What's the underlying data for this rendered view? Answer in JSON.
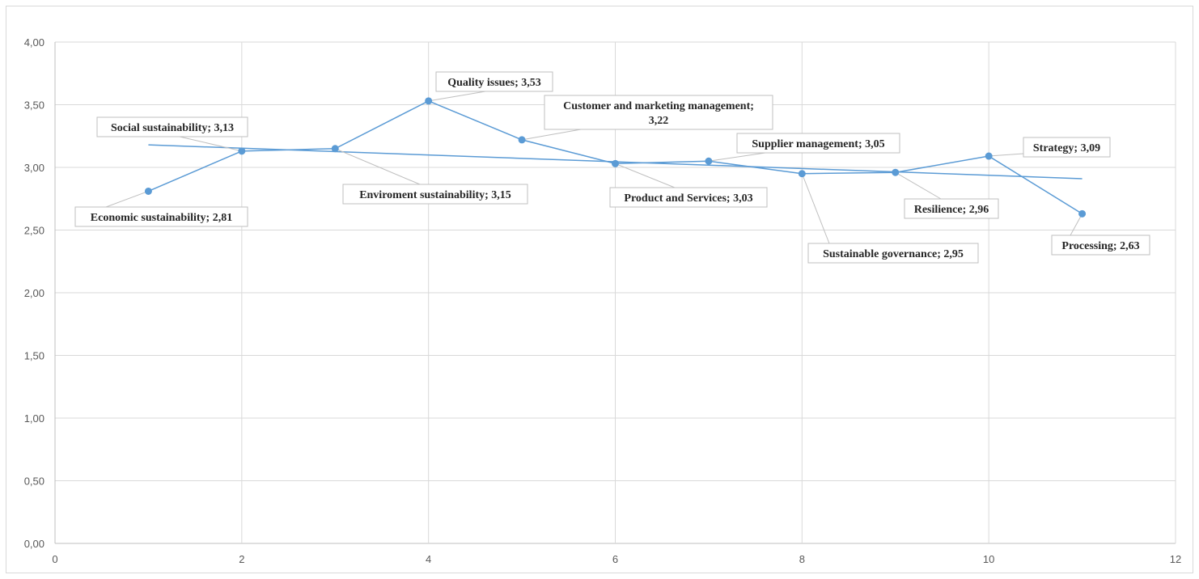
{
  "chart_data": {
    "type": "scatter",
    "title": "",
    "xlabel": "",
    "ylabel": "",
    "xlim": [
      0,
      12
    ],
    "ylim": [
      0,
      4
    ],
    "x_ticks": [
      "0",
      "2",
      "4",
      "6",
      "8",
      "10",
      "12"
    ],
    "y_ticks": [
      "0,00",
      "0,50",
      "1,00",
      "1,50",
      "2,00",
      "2,50",
      "3,00",
      "3,50",
      "4,00"
    ],
    "grid": true,
    "legend": "none",
    "series_color": "#5b9bd5",
    "trendline": {
      "type": "linear",
      "x_start": 1,
      "x_end": 11,
      "y_start": 3.18,
      "y_end": 2.91
    },
    "points": [
      {
        "x": 1,
        "y": 2.81,
        "label": "Economic sustainability; 2,81"
      },
      {
        "x": 2,
        "y": 3.13,
        "label": "Social sustainability; 3,13"
      },
      {
        "x": 3,
        "y": 3.15,
        "label": "Enviroment sustainability; 3,15"
      },
      {
        "x": 4,
        "y": 3.53,
        "label": "Quality issues; 3,53"
      },
      {
        "x": 5,
        "y": 3.22,
        "label": "Customer and marketing management;\n3,22"
      },
      {
        "x": 6,
        "y": 3.03,
        "label": "Product and Services; 3,03"
      },
      {
        "x": 7,
        "y": 3.05,
        "label": "Supplier management; 3,05"
      },
      {
        "x": 8,
        "y": 2.95,
        "label": "Sustainable governance; 2,95"
      },
      {
        "x": 9,
        "y": 2.96,
        "label": "Resilience; 2,96"
      },
      {
        "x": 10,
        "y": 3.09,
        "label": "Strategy; 3,09"
      },
      {
        "x": 11,
        "y": 2.63,
        "label": "Processing; 2,63"
      }
    ]
  }
}
